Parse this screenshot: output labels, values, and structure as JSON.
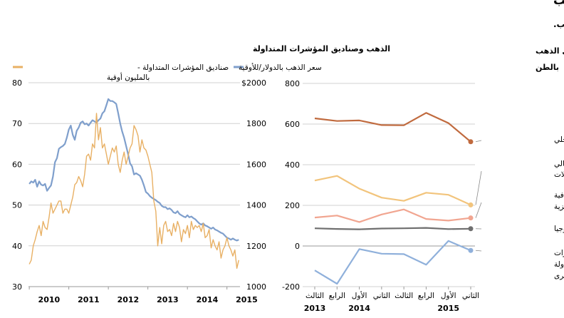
{
  "header": {
    "title": "الطلب العالمي على الذهب",
    "subtitle": "تشكل صناعة الحلي والاستثمار معظم الطلب العالمي على الذهب."
  },
  "colors": {
    "etf_line": "#7f9fcc",
    "gold_line": "#e8b064",
    "jewellery": "#c06a3e",
    "bank_coin": "#f2c47c",
    "central_banks": "#f1a590",
    "technology": "#6f6f6f",
    "etf_demand": "#8fb0db",
    "grid": "#d0d0d0",
    "axis": "#999999"
  },
  "chart_data": [
    {
      "type": "line",
      "title": "الذهب وصناديق المؤشرات المتداولة",
      "legend_placement": "top",
      "grid": true,
      "x_ticks": [
        "2010",
        "2011",
        "2012",
        "2013",
        "2014",
        "2015"
      ],
      "xlim": [
        2009.98,
        2015.33
      ],
      "left_axis": {
        "ticks": [
          "30",
          "40",
          "50",
          "60",
          "70",
          "80"
        ],
        "ylim": [
          30,
          80
        ]
      },
      "right_axis": {
        "ticks": [
          "1000",
          "1200",
          "1400",
          "1600",
          "1800",
          "$2000"
        ],
        "ylim": [
          1000,
          2000
        ]
      },
      "series": [
        {
          "name": "صناديق المؤشرات المتداولة - بالمليون أوقية",
          "axis": "left",
          "color": "#7f9fcc",
          "x": [
            2010.0,
            2010.05,
            2010.1,
            2010.15,
            2010.2,
            2010.25,
            2010.3,
            2010.35,
            2010.4,
            2010.45,
            2010.5,
            2010.55,
            2010.6,
            2010.65,
            2010.7,
            2010.75,
            2010.8,
            2010.85,
            2010.9,
            2010.95,
            2011.0,
            2011.05,
            2011.1,
            2011.15,
            2011.2,
            2011.25,
            2011.3,
            2011.35,
            2011.4,
            2011.45,
            2011.5,
            2011.55,
            2011.6,
            2011.65,
            2011.7,
            2011.75,
            2011.8,
            2011.85,
            2011.9,
            2011.95,
            2012.0,
            2012.05,
            2012.1,
            2012.15,
            2012.2,
            2012.25,
            2012.3,
            2012.35,
            2012.4,
            2012.45,
            2012.5,
            2012.55,
            2012.6,
            2012.65,
            2012.7,
            2012.75,
            2012.8,
            2012.85,
            2012.9,
            2012.95,
            2013.0,
            2013.05,
            2013.1,
            2013.15,
            2013.2,
            2013.25,
            2013.3,
            2013.35,
            2013.4,
            2013.45,
            2013.5,
            2013.55,
            2013.6,
            2013.65,
            2013.7,
            2013.75,
            2013.8,
            2013.85,
            2013.9,
            2013.95,
            2014.0,
            2014.05,
            2014.1,
            2014.15,
            2014.2,
            2014.25,
            2014.3,
            2014.35,
            2014.4,
            2014.45,
            2014.5,
            2014.55,
            2014.6,
            2014.65,
            2014.7,
            2014.75,
            2014.8,
            2014.85,
            2014.9,
            2014.95,
            2015.0,
            2015.05,
            2015.1,
            2015.15,
            2015.2,
            2015.25,
            2015.3
          ],
          "values": [
            55.2,
            55.8,
            55.5,
            56.2,
            54.5,
            55.8,
            55.0,
            54.8,
            55.2,
            53.5,
            54.2,
            54.8,
            57.0,
            60.5,
            61.5,
            63.8,
            64.2,
            64.5,
            65.0,
            66.5,
            68.5,
            69.5,
            67.2,
            66.0,
            68.2,
            69.0,
            70.2,
            70.5,
            69.8,
            70.0,
            69.5,
            70.2,
            70.8,
            70.5,
            70.2,
            70.8,
            71.2,
            72.5,
            73.0,
            74.5,
            76.0,
            75.5,
            75.5,
            75.2,
            74.8,
            72.5,
            70.0,
            68.0,
            66.5,
            64.5,
            62.5,
            60.2,
            59.5,
            57.5,
            57.8,
            57.5,
            57.2,
            56.2,
            54.8,
            53.2,
            52.8,
            52.2,
            51.8,
            51.5,
            51.2,
            50.8,
            50.5,
            49.8,
            49.5,
            49.5,
            49.0,
            49.2,
            48.8,
            48.2,
            48.0,
            48.5,
            47.8,
            47.5,
            47.2,
            47.0,
            47.5,
            47.0,
            47.2,
            46.8,
            46.5,
            46.0,
            45.5,
            45.2,
            45.5,
            45.0,
            44.8,
            44.5,
            44.2,
            44.5,
            44.0,
            43.8,
            43.5,
            43.2,
            43.0,
            42.5,
            42.0,
            41.8,
            41.5,
            41.8,
            41.5,
            41.3,
            41.5
          ]
        },
        {
          "name": "سعر الذهب بالدولار/للأوقية",
          "axis": "right",
          "color": "#e8b064",
          "x": [
            2010.0,
            2010.05,
            2010.1,
            2010.15,
            2010.2,
            2010.25,
            2010.3,
            2010.35,
            2010.4,
            2010.45,
            2010.5,
            2010.55,
            2010.6,
            2010.65,
            2010.7,
            2010.75,
            2010.8,
            2010.85,
            2010.9,
            2010.95,
            2011.0,
            2011.05,
            2011.1,
            2011.15,
            2011.2,
            2011.25,
            2011.3,
            2011.35,
            2011.4,
            2011.45,
            2011.5,
            2011.55,
            2011.6,
            2011.65,
            2011.7,
            2011.75,
            2011.8,
            2011.85,
            2011.9,
            2011.95,
            2012.0,
            2012.05,
            2012.1,
            2012.15,
            2012.2,
            2012.25,
            2012.3,
            2012.35,
            2012.4,
            2012.45,
            2012.5,
            2012.55,
            2012.6,
            2012.65,
            2012.7,
            2012.75,
            2012.8,
            2012.85,
            2012.9,
            2012.95,
            2013.0,
            2013.05,
            2013.1,
            2013.15,
            2013.2,
            2013.25,
            2013.3,
            2013.35,
            2013.4,
            2013.45,
            2013.5,
            2013.55,
            2013.6,
            2013.65,
            2013.7,
            2013.75,
            2013.8,
            2013.85,
            2013.9,
            2013.95,
            2014.0,
            2014.05,
            2014.1,
            2014.15,
            2014.2,
            2014.25,
            2014.3,
            2014.35,
            2014.4,
            2014.45,
            2014.5,
            2014.55,
            2014.6,
            2014.65,
            2014.7,
            2014.75,
            2014.8,
            2014.85,
            2014.9,
            2014.95,
            2015.0,
            2015.05,
            2015.1,
            2015.15,
            2015.2,
            2015.25,
            2015.3
          ],
          "values": [
            1110,
            1130,
            1200,
            1230,
            1270,
            1300,
            1250,
            1320,
            1290,
            1280,
            1340,
            1410,
            1360,
            1380,
            1400,
            1420,
            1420,
            1360,
            1380,
            1380,
            1360,
            1400,
            1440,
            1500,
            1510,
            1540,
            1520,
            1490,
            1550,
            1640,
            1650,
            1620,
            1700,
            1680,
            1850,
            1720,
            1780,
            1680,
            1700,
            1650,
            1600,
            1640,
            1680,
            1660,
            1690,
            1600,
            1560,
            1620,
            1660,
            1600,
            1640,
            1680,
            1700,
            1790,
            1770,
            1740,
            1660,
            1720,
            1680,
            1670,
            1640,
            1600,
            1560,
            1420,
            1370,
            1200,
            1290,
            1210,
            1300,
            1320,
            1270,
            1280,
            1250,
            1310,
            1270,
            1320,
            1290,
            1220,
            1280,
            1260,
            1300,
            1240,
            1320,
            1280,
            1300,
            1290,
            1300,
            1270,
            1310,
            1240,
            1250,
            1280,
            1190,
            1230,
            1200,
            1180,
            1220,
            1140,
            1180,
            1200,
            1240,
            1200,
            1180,
            1150,
            1180,
            1090,
            1130
          ]
        }
      ]
    },
    {
      "type": "line",
      "title": "الطلب على الذهب بالطن",
      "grid": true,
      "categories": [
        "الثالث 2013",
        "الرابع",
        "الأول 2014",
        "الثاني",
        "الثالث",
        "الرابع",
        "الأول 2015",
        "الثاني"
      ],
      "x_tick_top": [
        "الثالث",
        "الرابع",
        "الأول",
        "الثاني",
        "الثالث",
        "الرابع",
        "الأول",
        "الثاني"
      ],
      "x_tick_bottom": [
        "2013",
        "",
        "2014",
        "",
        "",
        "",
        "2015",
        ""
      ],
      "y_ticks": [
        "-200",
        "0",
        "200",
        "400",
        "600",
        "800"
      ],
      "ylim": [
        -200,
        800
      ],
      "series": [
        {
          "name": "الحلي",
          "color": "#c06a3e",
          "values": [
            628,
            615,
            618,
            595,
            594,
            655,
            605,
            513
          ]
        },
        {
          "name": "الطلب الإجمالي على السبائك والعملات",
          "color": "#f2c47c",
          "values": [
            322,
            345,
            282,
            238,
            222,
            262,
            252,
            202
          ]
        },
        {
          "name": "المشتريات الصافية للبنوك المركزية",
          "color": "#f1a590",
          "values": [
            140,
            150,
            118,
            155,
            180,
            133,
            125,
            138
          ]
        },
        {
          "name": "التكنولوجيا",
          "color": "#6f6f6f",
          "values": [
            87,
            84,
            82,
            86,
            87,
            89,
            83,
            85
          ]
        },
        {
          "name": "صناديق المؤشرات المتداولة والمنتجات الأخرى",
          "color": "#8fb0db",
          "values": [
            -120,
            -186,
            -15,
            -38,
            -40,
            -92,
            25,
            -22
          ]
        }
      ]
    }
  ]
}
